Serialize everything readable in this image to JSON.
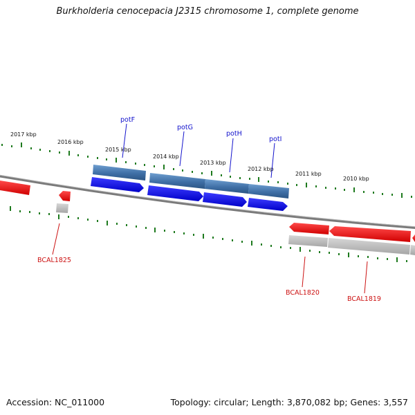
{
  "title": "Burkholderia cenocepacia J2315 chromosome 1, complete genome",
  "footer": {
    "accession": "Accession: NC_011000",
    "summary": "Topology: circular; Length: 3,870,082 bp; Genes: 3,557"
  },
  "scale_labels": [
    "2017 kbp",
    "2016 kbp",
    "2015 kbp",
    "2014 kbp",
    "2013 kbp",
    "2012 kbp",
    "2011 kbp",
    "2010 kbp"
  ],
  "forward_genes": [
    {
      "name": "potF",
      "color": "#1a1aee"
    },
    {
      "name": "potG",
      "color": "#1a1aee"
    },
    {
      "name": "potH",
      "color": "#1a1aee"
    },
    {
      "name": "potI",
      "color": "#1a1aee"
    }
  ],
  "reverse_genes": [
    {
      "name": "BCAL1825",
      "color": "#ee1111"
    },
    {
      "name": "BCAL1820",
      "color": "#ee1111"
    },
    {
      "name": "BCAL1819",
      "color": "#ee1111"
    }
  ],
  "colors": {
    "forward_cds": "#1a1aee",
    "forward_gene_track": "#4a7fb8",
    "reverse_cds": "#ee1111",
    "reverse_gene_track": "#b8b8b8",
    "backbone": "#7a7a7a",
    "tick": "#1e7a1e"
  }
}
